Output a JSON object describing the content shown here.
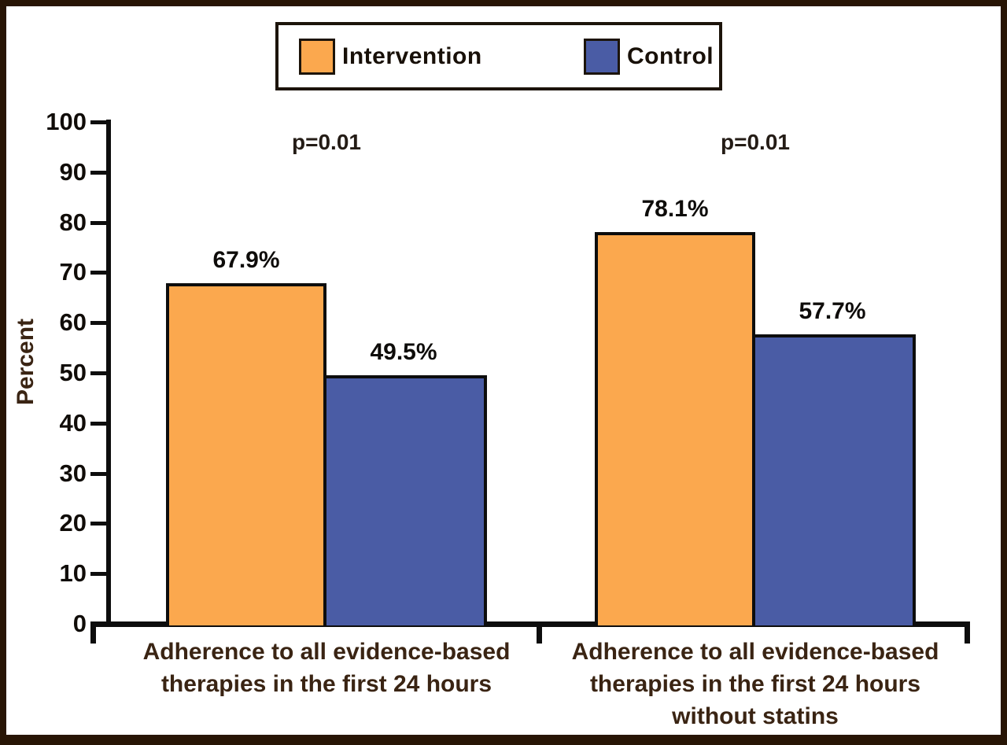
{
  "figure": {
    "ylabel": "Percent",
    "legend": {
      "items": [
        {
          "label": "Intervention",
          "color": "#FBA84E"
        },
        {
          "label": "Control",
          "color": "#4A5CA5"
        }
      ]
    }
  },
  "chart_data": {
    "type": "bar",
    "title": "",
    "ylabel": "Percent",
    "xlabel": "",
    "ylim": [
      0,
      100
    ],
    "yticks": [
      0,
      10,
      20,
      30,
      40,
      50,
      60,
      70,
      80,
      90,
      100
    ],
    "grid": false,
    "legend_position": "top-center",
    "categories": [
      "Adherence to all evidence-based therapies in the first 24 hours",
      "Adherence to all evidence-based therapies in the first 24 hours without statins"
    ],
    "category_lines": [
      [
        "Adherence to all evidence-based",
        "therapies in the first 24 hours"
      ],
      [
        "Adherence to all evidence-based",
        "therapies in the first 24 hours",
        "without statins"
      ]
    ],
    "series": [
      {
        "name": "Intervention",
        "color": "#FBA84E",
        "values": [
          67.9,
          78.1
        ],
        "value_labels": [
          "67.9%",
          "78.1%"
        ]
      },
      {
        "name": "Control",
        "color": "#4A5CA5",
        "values": [
          49.5,
          57.7
        ],
        "value_labels": [
          "49.5%",
          "57.7%"
        ]
      }
    ],
    "annotations": [
      {
        "text": "p=0.01",
        "group": 0
      },
      {
        "text": "p=0.01",
        "group": 1
      }
    ],
    "colors": {
      "bar_outline": "#0d0d0d",
      "frame_border": "#281505",
      "axis": "#0d0d0d",
      "category_text": "#3a2413"
    }
  }
}
